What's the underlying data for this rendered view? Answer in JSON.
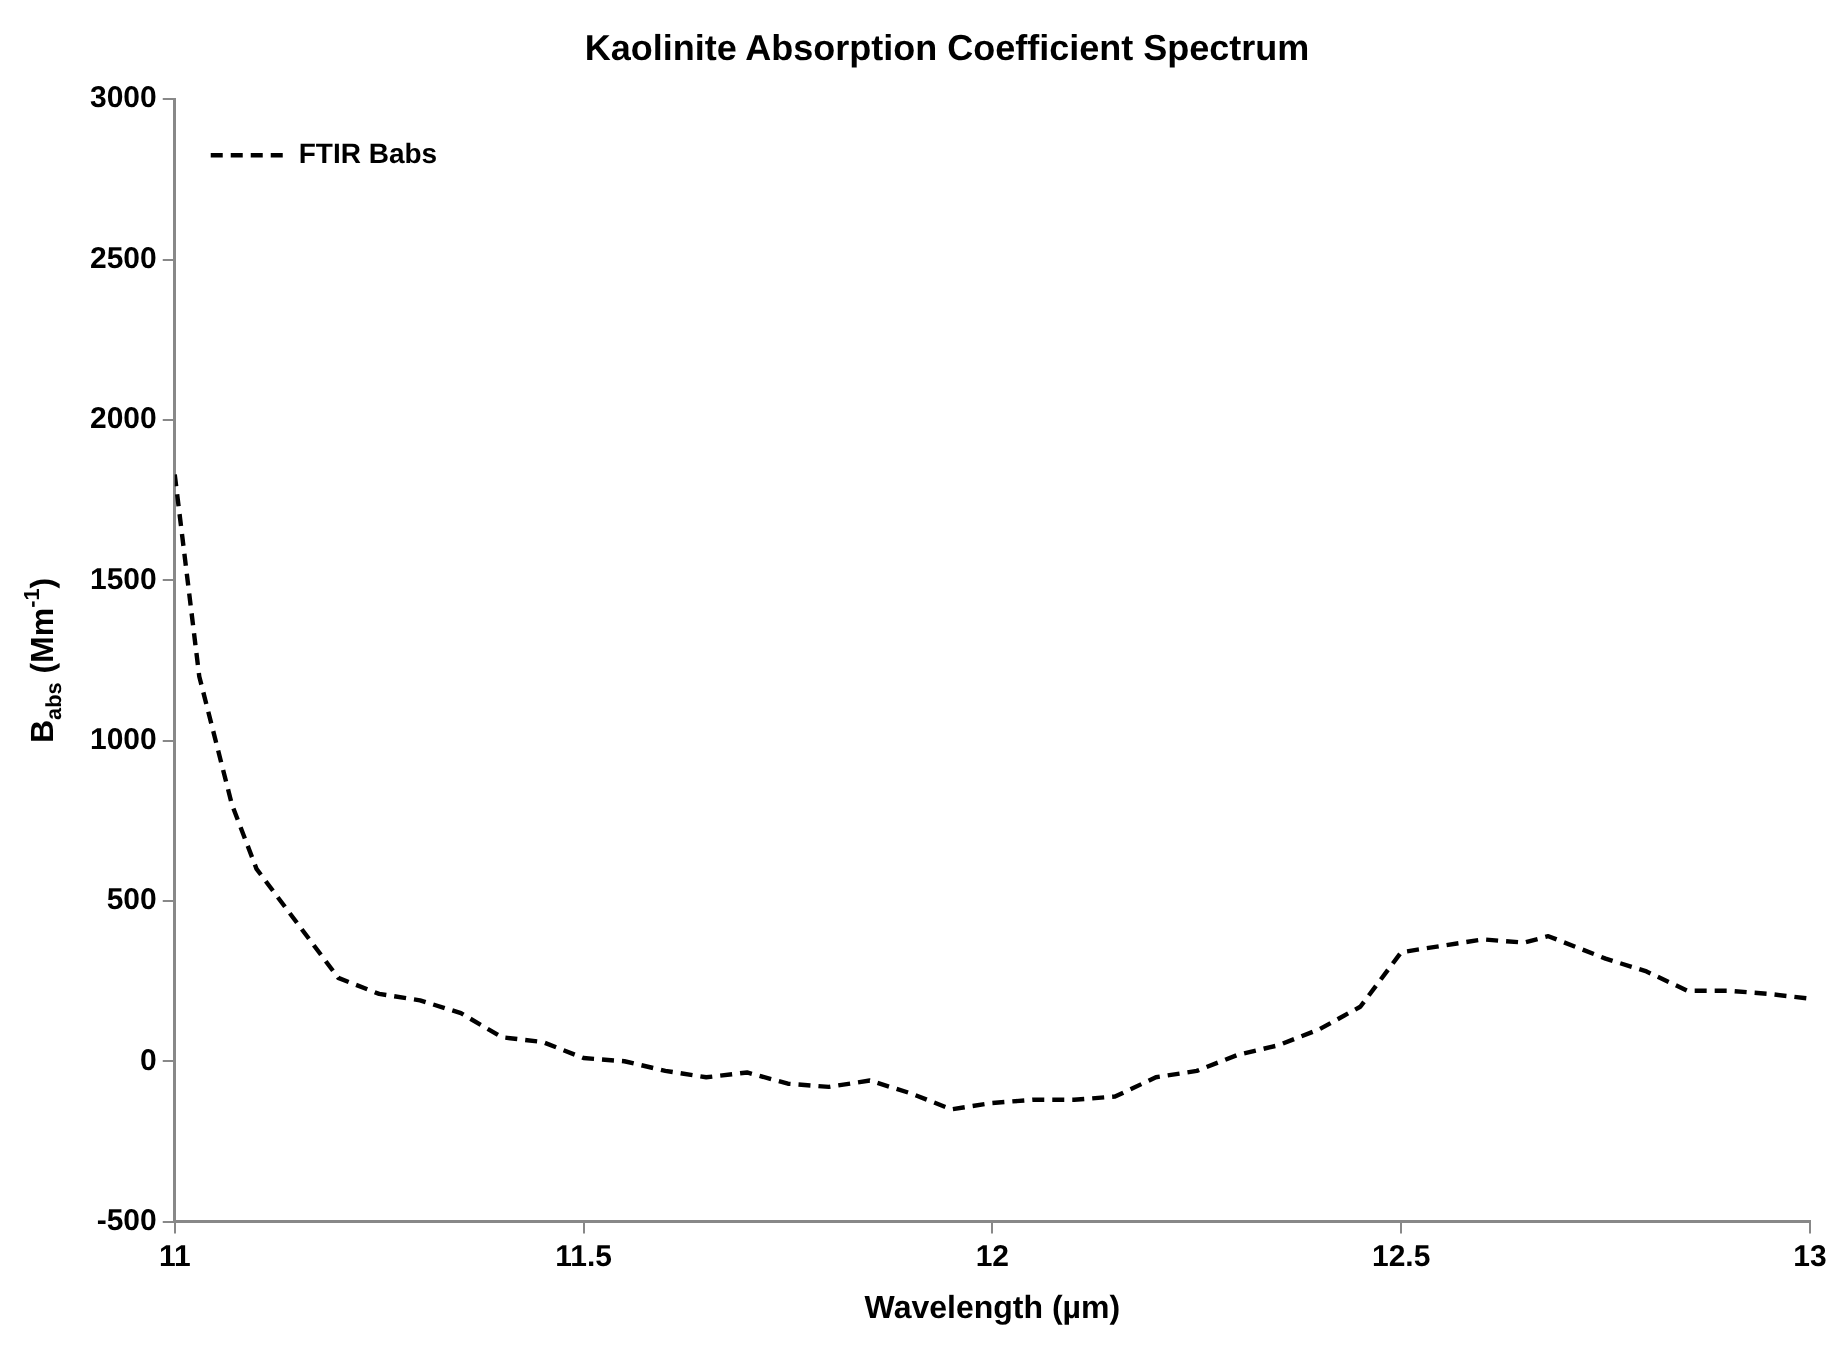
{
  "chart_data": {
    "type": "line",
    "title": "Kaolinite Absorption Coefficient Spectrum",
    "xlabel": "Wavelength (µm)",
    "ylabel": "B$_{abs}$ (Mm$^{-1}$)",
    "xlim": [
      11,
      13
    ],
    "xticks": [
      11,
      11.5,
      12,
      12.5,
      13
    ],
    "ylim": [
      -500,
      3000
    ],
    "yticks": [
      -500,
      0,
      500,
      1000,
      1500,
      2000,
      2500,
      3000
    ],
    "grid": false,
    "legend": "top left",
    "line_style": "dashed",
    "marker": "none",
    "series": [
      {
        "name": "FTIR Babs",
        "color": "#000000",
        "x": [
          11,
          11.03,
          11.07,
          11.1,
          11.15,
          11.2,
          11.25,
          11.3,
          11.35,
          11.4,
          11.45,
          11.5,
          11.55,
          11.6,
          11.65,
          11.7,
          11.75,
          11.8,
          11.85,
          11.9,
          11.95,
          12,
          12.05,
          12.1,
          12.15,
          12.2,
          12.25,
          12.3,
          12.35,
          12.4,
          12.45,
          12.5,
          12.55,
          12.6,
          12.65,
          12.68,
          12.75,
          12.8,
          12.85,
          12.9,
          12.95,
          13
        ],
        "values": [
          1830,
          1200,
          800,
          600,
          430,
          260,
          210,
          190,
          150,
          75,
          60,
          10,
          0,
          -30,
          -50,
          -35,
          -70,
          -80,
          -60,
          -100,
          -150,
          -130,
          -120,
          -120,
          -110,
          -50,
          -30,
          20,
          50,
          100,
          170,
          340,
          360,
          380,
          370,
          390,
          320,
          280,
          220,
          220,
          210,
          195
        ]
      }
    ]
  }
}
